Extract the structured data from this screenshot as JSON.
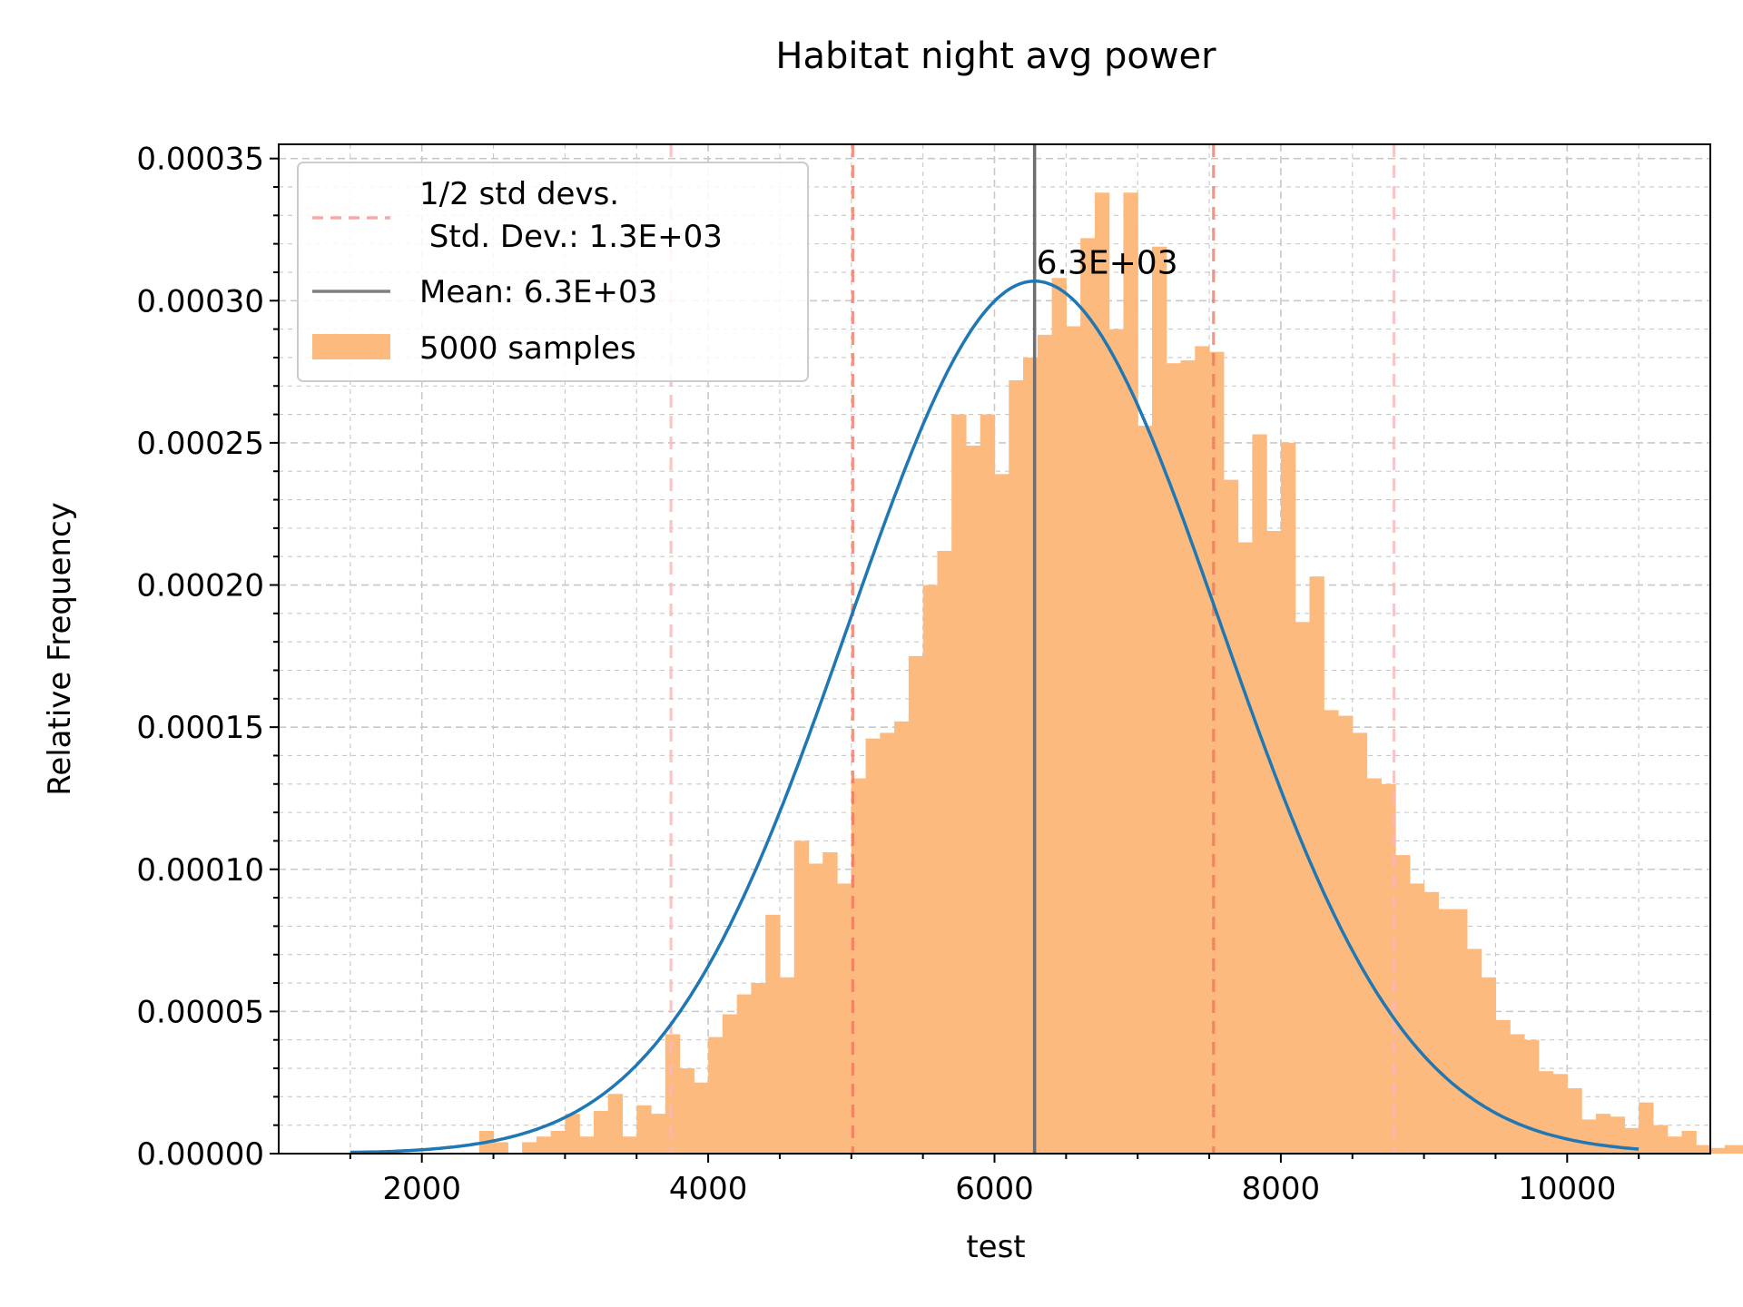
{
  "chart_data": {
    "type": "bar",
    "title": "Habitat  night avg power",
    "xlabel": "test",
    "ylabel": "Relative Frequency",
    "xlim": [
      1000,
      11000
    ],
    "ylim": [
      0,
      0.000355
    ],
    "xticks": [
      2000,
      4000,
      6000,
      8000,
      10000
    ],
    "xtick_labels": [
      "2000",
      "4000",
      "6000",
      "8000",
      "10000"
    ],
    "yticks": [
      0,
      5e-05,
      0.0001,
      0.00015,
      0.0002,
      0.00025,
      0.0003,
      0.00035
    ],
    "ytick_labels": [
      "0.00000",
      "0.00005",
      "0.00010",
      "0.00015",
      "0.00020",
      "0.00025",
      "0.00030",
      "0.00035"
    ],
    "grid": true,
    "legend_position": "top-left",
    "legend": {
      "std_label_line1": "1/2 std devs.",
      "std_label_line2": " Std. Dev.: 1.3E+03",
      "mean_label": "Mean: 6.3E+03",
      "hist_label": "5000 samples"
    },
    "mean": 6280,
    "std": 1300,
    "mean_annotation": "6.3E+03",
    "std_lines": [
      3740,
      5010,
      7530,
      8790
    ],
    "histogram": {
      "bin_start": 1500,
      "bin_width": 100,
      "values": [
        1.2e-06,
        1.2e-06,
        0,
        0,
        0,
        0,
        0,
        0,
        0,
        8e-06,
        4e-06,
        0,
        4e-06,
        6e-06,
        8e-06,
        1.4e-05,
        6e-06,
        1.5e-05,
        2.1e-05,
        6e-06,
        1.7e-05,
        1.4e-05,
        4.2e-05,
        3e-05,
        2.5e-05,
        4.1e-05,
        4.9e-05,
        5.6e-05,
        6e-05,
        8.4e-05,
        6.2e-05,
        0.00011,
        0.000102,
        0.000106,
        9.5e-05,
        0.000132,
        0.000146,
        0.000148,
        0.000152,
        0.000175,
        0.0002,
        0.000212,
        0.00026,
        0.000249,
        0.00026,
        0.000239,
        0.000272,
        0.00028,
        0.000288,
        0.000308,
        0.000291,
        0.000322,
        0.000338,
        0.00029,
        0.000338,
        0.000256,
        0.000319,
        0.000278,
        0.000279,
        0.000284,
        0.000282,
        0.000237,
        0.000215,
        0.000253,
        0.000219,
        0.00025,
        0.000187,
        0.000203,
        0.000156,
        0.000154,
        0.000148,
        0.000132,
        0.00013,
        0.000105,
        9.5e-05,
        9.2e-05,
        8.6e-05,
        8.6e-05,
        7.2e-05,
        6.2e-05,
        4.7e-05,
        4.2e-05,
        4e-05,
        2.9e-05,
        2.8e-05,
        2.3e-05,
        1.2e-05,
        1.4e-05,
        1.3e-05,
        9e-06,
        1.8e-05,
        1e-05,
        6e-06,
        8e-06,
        3e-06,
        2e-06,
        3e-06,
        3e-06,
        2e-06,
        1e-06
      ]
    },
    "fit_curve": "normal",
    "colors": {
      "histogram": "#fdba7f",
      "fit": "#1f77b4",
      "mean_line": "#6e6e6e",
      "std_inner": "#f2705a",
      "std_outer": "#f9b6b6",
      "grid": "#c8c8c8"
    }
  }
}
